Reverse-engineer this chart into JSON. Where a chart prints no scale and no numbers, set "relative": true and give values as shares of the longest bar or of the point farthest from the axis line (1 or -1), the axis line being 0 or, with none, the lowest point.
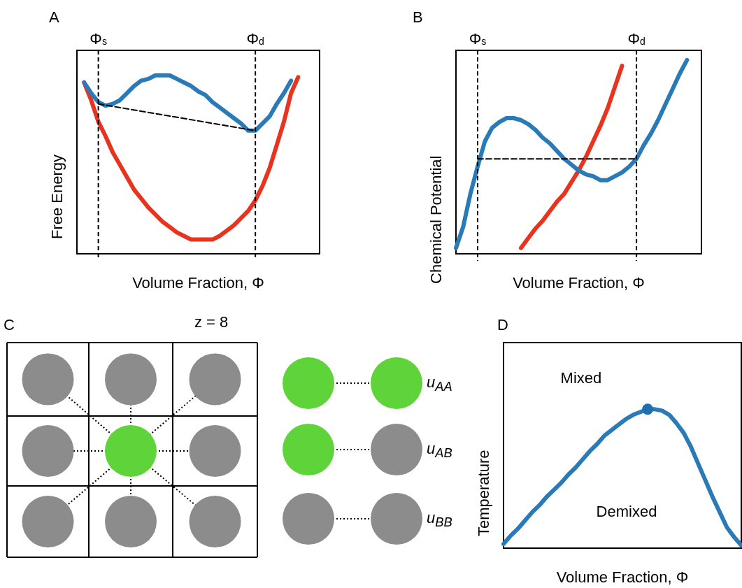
{
  "chart_data": [
    {
      "type": "line",
      "title": "A",
      "xlabel": "Volume Fraction, Φ",
      "ylabel": "Free Energy",
      "relative": true,
      "tick_labels": false,
      "categories": [
        null,
        null,
        null,
        null,
        null,
        null,
        null,
        null,
        null,
        null,
        null,
        null,
        null,
        null,
        null,
        null,
        null,
        null,
        null,
        null,
        null,
        null,
        null,
        null,
        null,
        null,
        null,
        null,
        null,
        null,
        null,
        null,
        null,
        null,
        null
      ],
      "series": [
        {
          "color": "#e8331f",
          "values": [
            null,
            0.96,
            0.86,
            0.74,
            0.66,
            0.57,
            0.5,
            0.43,
            0.36,
            0.31,
            0.26,
            0.22,
            0.18,
            0.15,
            0.12,
            0.1,
            0.08,
            0.08,
            0.08,
            0.08,
            0.1,
            0.13,
            0.16,
            0.2,
            0.24,
            0.3,
            0.38,
            0.48,
            0.61,
            0.74,
            0.9,
            0.99,
            null,
            null,
            null
          ]
        },
        {
          "color": "#2a7ab8",
          "values": [
            null,
            0.96,
            0.9,
            0.85,
            0.83,
            0.84,
            0.86,
            0.9,
            0.94,
            0.97,
            0.98,
            1.0,
            1.0,
            1.0,
            0.98,
            0.96,
            0.94,
            0.91,
            0.89,
            0.85,
            0.82,
            0.79,
            0.76,
            0.73,
            0.69,
            0.69,
            0.73,
            0.77,
            0.84,
            0.9,
            0.97,
            null,
            null,
            null,
            null
          ]
        },
        {
          "color": "#000000",
          "line_style": "dashed",
          "values": [
            null,
            null,
            null,
            0.84,
            null,
            null,
            null,
            null,
            null,
            null,
            null,
            null,
            null,
            null,
            null,
            null,
            null,
            null,
            null,
            null,
            null,
            null,
            null,
            null,
            null,
            0.69,
            null,
            null,
            null,
            null,
            null,
            null,
            null,
            null,
            null
          ]
        }
      ],
      "annotations": [
        "Φ$_{s}$",
        "Φ$_{d}$"
      ]
    },
    {
      "type": "line",
      "title": "B",
      "xlabel": "Volume Fraction, Φ",
      "ylabel": "Chemical Potential",
      "relative": true,
      "tick_labels": false,
      "categories": [
        null,
        null,
        null,
        null,
        null,
        null,
        null,
        null,
        null,
        null,
        null,
        null,
        null,
        null,
        null,
        null,
        null,
        null,
        null,
        null,
        null,
        null,
        null,
        null,
        null,
        null,
        null,
        null,
        null,
        null,
        null,
        null,
        null,
        null,
        null
      ],
      "series": [
        {
          "color": "#e8331f",
          "values": [
            null,
            null,
            null,
            null,
            null,
            null,
            null,
            null,
            null,
            0.03,
            0.08,
            0.13,
            0.17,
            0.22,
            0.27,
            0.31,
            0.37,
            0.43,
            0.5,
            0.58,
            0.66,
            0.75,
            0.86,
            0.97,
            null,
            null,
            null,
            null,
            null,
            null,
            null,
            null,
            null,
            null,
            null
          ]
        },
        {
          "color": "#2a7ab8",
          "values": [
            0.03,
            0.14,
            0.31,
            0.45,
            0.58,
            0.65,
            0.68,
            0.7,
            0.7,
            0.69,
            0.67,
            0.64,
            0.6,
            0.57,
            0.53,
            0.49,
            0.46,
            0.43,
            0.41,
            0.4,
            0.38,
            0.38,
            0.4,
            0.42,
            0.45,
            0.49,
            0.56,
            0.62,
            0.69,
            0.77,
            0.85,
            0.93,
            1.0,
            null,
            null
          ]
        },
        {
          "color": "#000000",
          "line_style": "dashed",
          "values": [
            null,
            null,
            null,
            0.49,
            null,
            null,
            null,
            null,
            null,
            null,
            null,
            null,
            null,
            null,
            null,
            null,
            null,
            null,
            null,
            null,
            null,
            null,
            null,
            null,
            null,
            0.49,
            null,
            null,
            null,
            null,
            null,
            null,
            null,
            null,
            null
          ]
        }
      ],
      "annotations": [
        "Φ$_{s}$",
        "Φ$_{d}$"
      ]
    },
    {
      "type": "other",
      "title": "C",
      "annotations": [
        "z = 8",
        "u$_{AA}$",
        "u$_{AB}$",
        "u$_{BB}$"
      ]
    },
    {
      "type": "line",
      "title": "D",
      "xlabel": "Volume Fraction, Φ",
      "ylabel": "Temperature",
      "relative": true,
      "tick_labels": false,
      "annotations": [
        "Mixed",
        "Demixed"
      ],
      "categories": [
        null,
        null,
        null,
        null,
        null,
        null,
        null,
        null,
        null,
        null,
        null,
        null,
        null,
        null,
        null,
        null,
        null,
        null,
        null,
        null,
        null,
        null,
        null,
        null,
        null,
        null,
        null,
        null,
        null,
        null,
        null,
        null,
        null,
        null
      ],
      "series": [
        {
          "color": "#2a7ab8",
          "values": [
            0.03,
            0.09,
            0.14,
            0.2,
            0.26,
            0.31,
            0.37,
            0.42,
            0.47,
            0.53,
            0.58,
            0.64,
            0.7,
            0.75,
            0.81,
            0.85,
            0.89,
            0.93,
            0.96,
            0.98,
            1.0,
            1.0,
            0.99,
            0.96,
            0.9,
            0.83,
            0.73,
            0.61,
            0.49,
            0.37,
            0.26,
            0.15,
            0.08,
            0.02
          ]
        }
      ]
    }
  ]
}
